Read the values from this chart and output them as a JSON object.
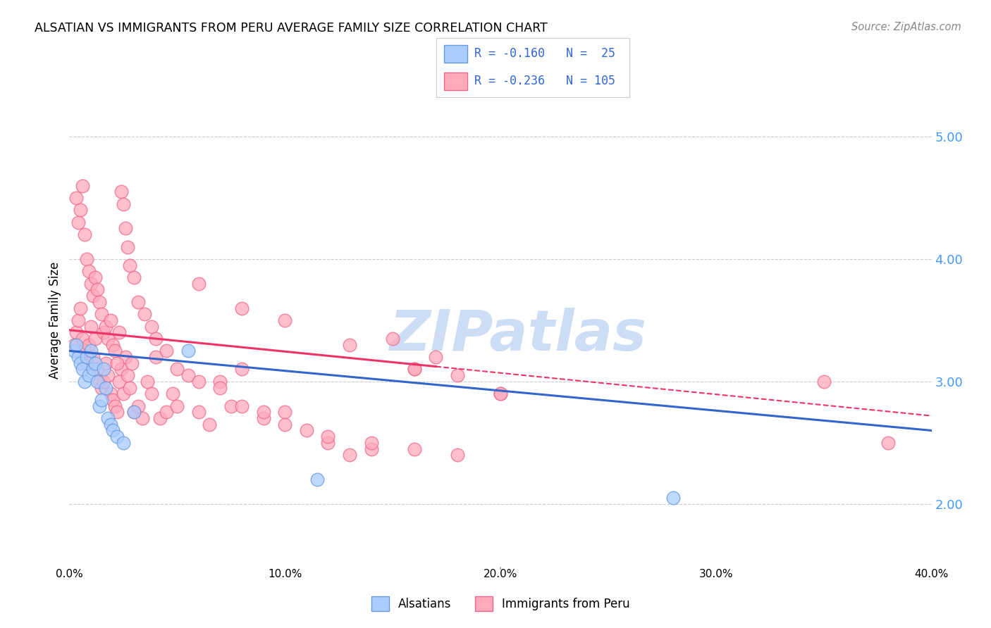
{
  "title": "ALSATIAN VS IMMIGRANTS FROM PERU AVERAGE FAMILY SIZE CORRELATION CHART",
  "source": "Source: ZipAtlas.com",
  "ylabel": "Average Family Size",
  "xmin": 0.0,
  "xmax": 0.4,
  "ymin": 1.5,
  "ymax": 5.5,
  "yticks_right": [
    2.0,
    3.0,
    4.0,
    5.0
  ],
  "right_tick_color": "#4499ff",
  "legend_color1": "#aaccff",
  "legend_color2": "#ffaabb",
  "series1_color": "#aaccff",
  "series1_edgecolor": "#6699dd",
  "series2_color": "#ffaabb",
  "series2_edgecolor": "#ee6688",
  "trend1_color": "#3366cc",
  "trend2_color": "#ee3366",
  "watermark": "ZIPatlas",
  "watermark_color": "#ccddf5",
  "grid_color": "#cccccc",
  "background_color": "#ffffff",
  "trend1_x0": 0.0,
  "trend1_y0": 3.25,
  "trend1_x1": 0.4,
  "trend1_y1": 2.6,
  "trend2_x0": 0.0,
  "trend2_y0": 3.42,
  "trend2_x1": 0.4,
  "trend2_y1": 2.72,
  "trend2_solid_end": 0.17,
  "alsatians_x": [
    0.002,
    0.003,
    0.004,
    0.005,
    0.006,
    0.007,
    0.008,
    0.009,
    0.01,
    0.011,
    0.012,
    0.013,
    0.014,
    0.015,
    0.016,
    0.017,
    0.018,
    0.019,
    0.02,
    0.022,
    0.025,
    0.03,
    0.055,
    0.115,
    0.28
  ],
  "alsatians_y": [
    3.25,
    3.3,
    3.2,
    3.15,
    3.1,
    3.0,
    3.2,
    3.05,
    3.25,
    3.1,
    3.15,
    3.0,
    2.8,
    2.85,
    3.1,
    2.95,
    2.7,
    2.65,
    2.6,
    2.55,
    2.5,
    2.75,
    3.25,
    2.2,
    2.05
  ],
  "peru_x": [
    0.002,
    0.003,
    0.004,
    0.005,
    0.006,
    0.007,
    0.008,
    0.009,
    0.01,
    0.011,
    0.012,
    0.013,
    0.014,
    0.015,
    0.016,
    0.017,
    0.018,
    0.019,
    0.02,
    0.021,
    0.022,
    0.023,
    0.024,
    0.025,
    0.026,
    0.027,
    0.028,
    0.029,
    0.03,
    0.032,
    0.034,
    0.036,
    0.038,
    0.04,
    0.042,
    0.045,
    0.048,
    0.05,
    0.055,
    0.06,
    0.065,
    0.07,
    0.075,
    0.08,
    0.09,
    0.1,
    0.11,
    0.12,
    0.13,
    0.14,
    0.15,
    0.16,
    0.17,
    0.18,
    0.2,
    0.003,
    0.004,
    0.005,
    0.006,
    0.007,
    0.008,
    0.009,
    0.01,
    0.011,
    0.012,
    0.013,
    0.014,
    0.015,
    0.016,
    0.017,
    0.018,
    0.019,
    0.02,
    0.021,
    0.022,
    0.023,
    0.024,
    0.025,
    0.026,
    0.027,
    0.028,
    0.03,
    0.032,
    0.035,
    0.038,
    0.04,
    0.045,
    0.05,
    0.06,
    0.07,
    0.08,
    0.09,
    0.1,
    0.12,
    0.14,
    0.16,
    0.18,
    0.06,
    0.08,
    0.1,
    0.13,
    0.16,
    0.2,
    0.35,
    0.38
  ],
  "peru_y": [
    3.3,
    3.4,
    3.5,
    3.6,
    3.35,
    3.25,
    3.15,
    3.3,
    3.45,
    3.2,
    3.35,
    3.1,
    3.0,
    2.95,
    3.0,
    3.15,
    3.05,
    2.9,
    2.85,
    2.8,
    2.75,
    3.0,
    3.1,
    2.9,
    3.2,
    3.05,
    2.95,
    3.15,
    2.75,
    2.8,
    2.7,
    3.0,
    2.9,
    3.2,
    2.7,
    2.75,
    2.9,
    2.8,
    3.05,
    2.75,
    2.65,
    3.0,
    2.8,
    3.1,
    2.7,
    2.75,
    2.6,
    2.5,
    2.4,
    2.45,
    3.35,
    3.1,
    3.2,
    3.05,
    2.9,
    4.5,
    4.3,
    4.4,
    4.6,
    4.2,
    4.0,
    3.9,
    3.8,
    3.7,
    3.85,
    3.75,
    3.65,
    3.55,
    3.4,
    3.45,
    3.35,
    3.5,
    3.3,
    3.25,
    3.15,
    3.4,
    4.55,
    4.45,
    4.25,
    4.1,
    3.95,
    3.85,
    3.65,
    3.55,
    3.45,
    3.35,
    3.25,
    3.1,
    3.0,
    2.95,
    2.8,
    2.75,
    2.65,
    2.55,
    2.5,
    2.45,
    2.4,
    3.8,
    3.6,
    3.5,
    3.3,
    3.1,
    2.9,
    3.0,
    2.5
  ]
}
